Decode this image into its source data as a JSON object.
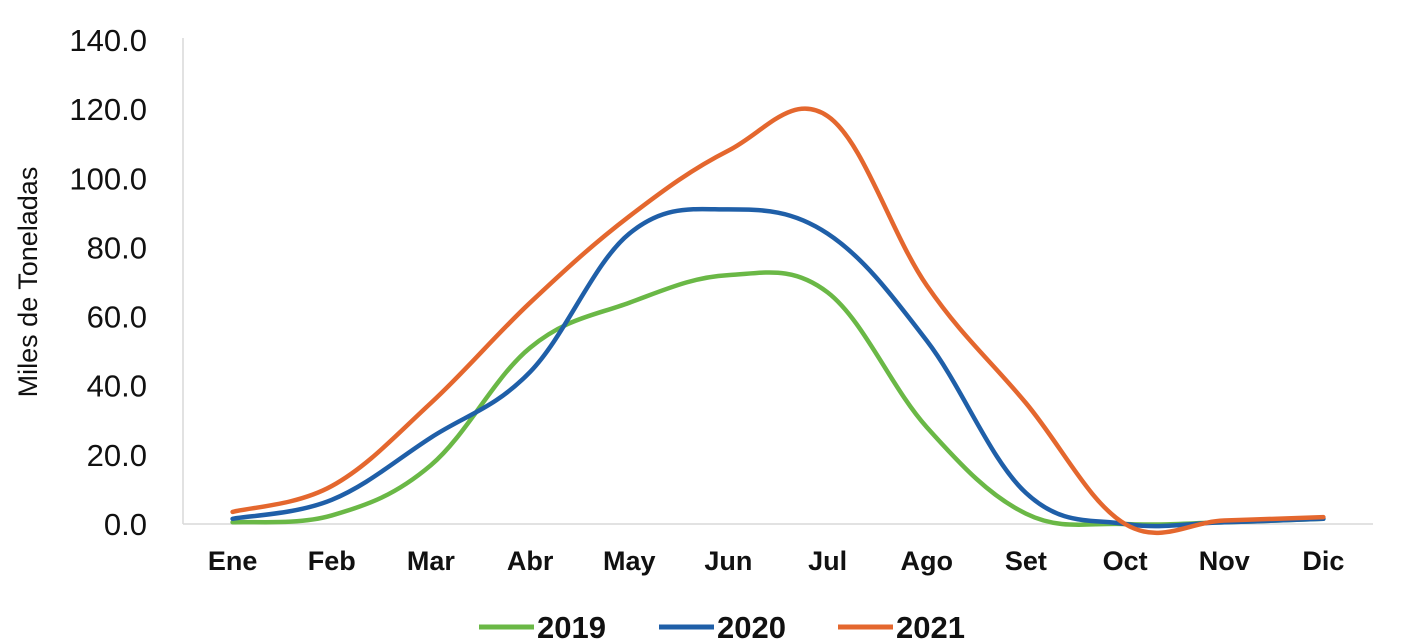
{
  "chart_data": {
    "type": "line",
    "ylabel": "Miles de Toneladas",
    "xlabel": "",
    "title": "",
    "categories": [
      "Ene",
      "Feb",
      "Mar",
      "Abr",
      "May",
      "Jun",
      "Jul",
      "Ago",
      "Set",
      "Oct",
      "Nov",
      "Dic"
    ],
    "ylim": [
      0,
      140
    ],
    "yticks": [
      "0.0",
      "20.0",
      "40.0",
      "60.0",
      "80.0",
      "100.0",
      "120.0",
      "140.0"
    ],
    "grid": false,
    "legend_position": "bottom",
    "series": [
      {
        "name": "2019",
        "color": "#6ab846",
        "values": [
          0.5,
          2.5,
          17,
          51,
          64,
          72,
          67,
          28,
          3,
          0,
          0.5,
          1.5
        ]
      },
      {
        "name": "2020",
        "color": "#1f5fa8",
        "values": [
          1.5,
          7,
          25,
          44,
          84,
          91,
          84,
          53,
          9,
          0,
          0.5,
          1.5
        ]
      },
      {
        "name": "2021",
        "color": "#e4672e",
        "values": [
          3.5,
          11,
          35,
          64,
          89,
          108,
          118,
          69,
          35,
          0,
          1,
          2
        ]
      }
    ]
  }
}
